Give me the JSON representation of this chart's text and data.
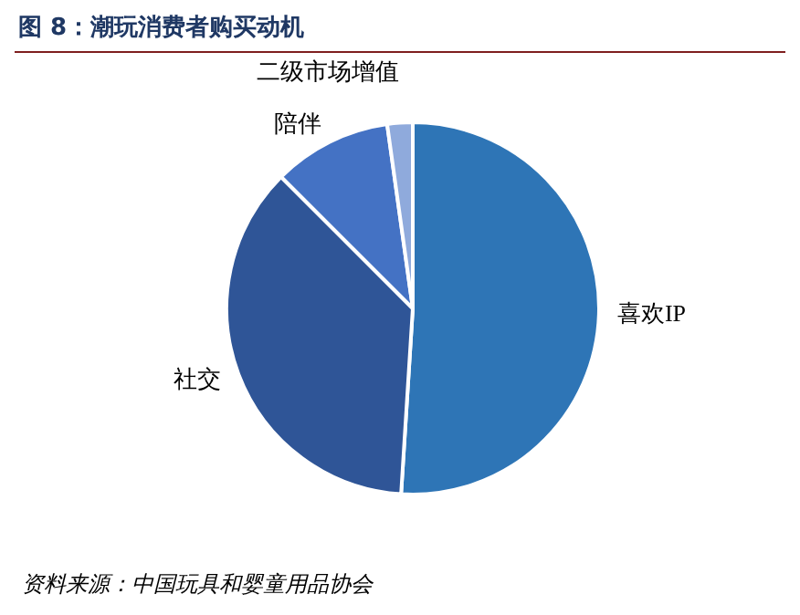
{
  "chart_data": {
    "type": "pie",
    "title": "图 8：潮玩消费者购买动机",
    "categories": [
      "喜欢IP",
      "社交",
      "陪伴",
      "二级市场增值"
    ],
    "values": [
      51,
      36.5,
      10.3,
      2.2
    ],
    "colors": [
      "#2e75b6",
      "#2f5597",
      "#4472c4",
      "#8faadc"
    ],
    "annotations": [
      "资料来源：中国玩具和婴童用品协会"
    ]
  }
}
